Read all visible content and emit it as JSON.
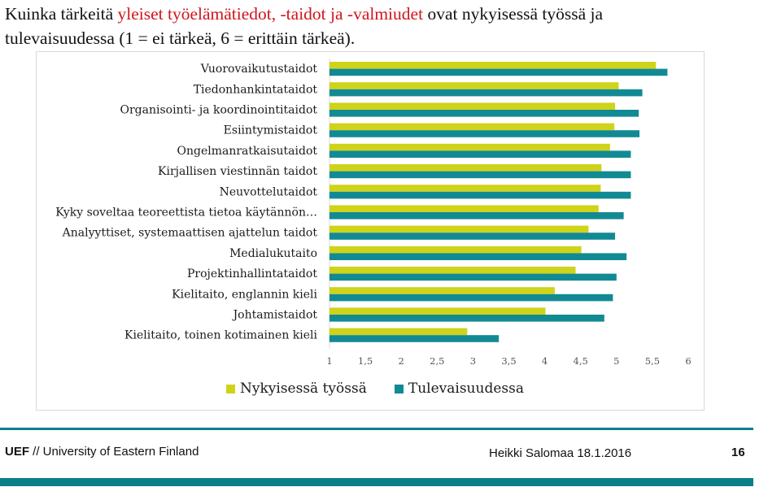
{
  "slide": {
    "title_part1": "Kuinka tärkeitä ",
    "title_highlight": "yleiset työelämätiedot, -taidot ja -valmiudet",
    "title_part2": " ovat nykyisessä työssä ja",
    "title_line2": "tulevaisuudessa (1 = ei tärkeä, 6 = erittäin tärkeä).",
    "footer_uef": "UEF",
    "footer_org": " // University of Eastern Finland",
    "footer_author": "Heikki Salomaa 18.1.2016",
    "page_number": "16",
    "accent_color": "#0a7f8a",
    "highlight_color": "#d1141c"
  },
  "chart_data": {
    "type": "bar",
    "orientation": "horizontal",
    "categories": [
      "Vuorovaikutustaidot",
      "Tiedonhankintataidot",
      "Organisointi- ja koordinointitaidot",
      "Esiintymistaidot",
      "Ongelmanratkaisutaidot",
      "Kirjallisen viestinnän taidot",
      "Neuvottelutaidot",
      "Kyky soveltaa teoreettista tietoa käytännön…",
      "Analyyttiset, systemaattisen ajattelun taidot",
      "Medialukutaito",
      "Projektinhallintataidot",
      "Kielitaito, englannin kieli",
      "Johtamistaidot",
      "Kielitaito, toinen kotimainen kieli"
    ],
    "series": [
      {
        "name": "Nykyisessä työssä",
        "color": "#cfd31a",
        "values": [
          5.55,
          5.03,
          4.98,
          4.97,
          4.91,
          4.79,
          4.78,
          4.75,
          4.61,
          4.51,
          4.43,
          4.14,
          4.01,
          2.92
        ]
      },
      {
        "name": "Tulevaisuudessa",
        "color": "#128a93",
        "values": [
          5.71,
          5.36,
          5.31,
          5.32,
          5.2,
          5.2,
          5.2,
          5.1,
          4.98,
          5.14,
          5.0,
          4.95,
          4.83,
          3.36
        ]
      }
    ],
    "xlim": [
      1,
      6
    ],
    "xticks": [
      "1",
      "1,5",
      "2",
      "2,5",
      "3",
      "3,5",
      "4",
      "4,5",
      "5",
      "5,5",
      "6"
    ],
    "grid": false,
    "legend_position": "bottom"
  }
}
